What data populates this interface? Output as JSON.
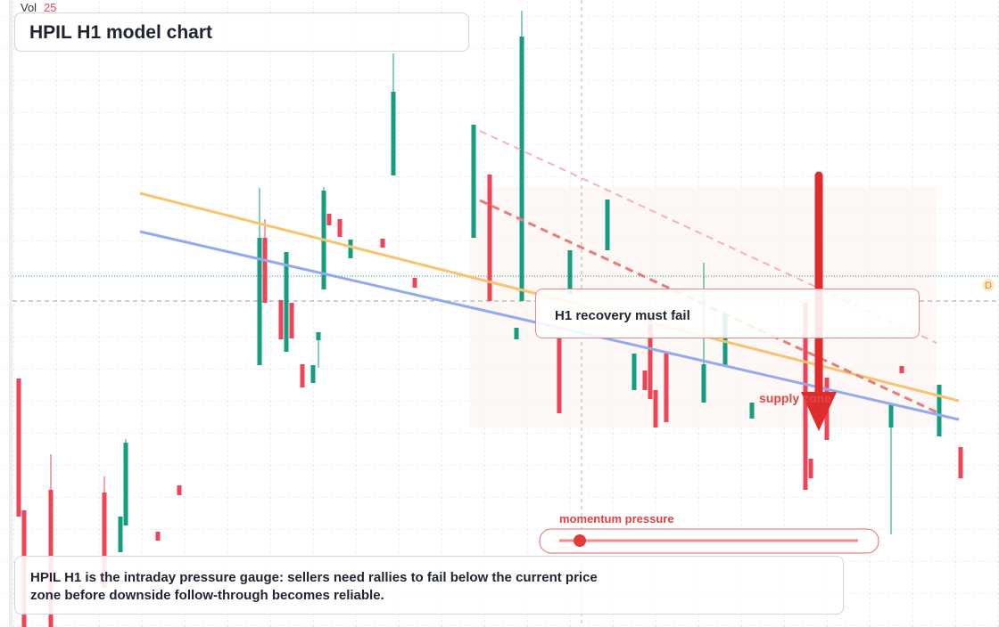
{
  "chart_data": {
    "type": "candlestick",
    "title": "HPIL H1 model chart",
    "volume_label": "Vol",
    "volume_value": "25",
    "marker": "D",
    "annotations": {
      "recovery": "H1 recovery must fail",
      "supply": "supply zone",
      "momentum": "momentum pressure",
      "description": "HPIL H1 is the intraday pressure gauge: sellers need rallies to fail below the current price zone before downside follow-through becomes reliable."
    },
    "up_color": "#169c80",
    "down_color": "#ef4358",
    "grid": true,
    "xlim": [
      -2.5,
      184.17
    ],
    "ylim": [
      0,
      704
    ],
    "x": [
      1,
      2,
      7,
      17,
      20,
      21,
      27,
      31,
      46,
      47,
      50,
      51,
      52,
      54,
      56,
      57,
      58,
      59,
      61,
      63,
      69,
      71,
      75,
      86,
      89,
      94,
      95,
      102,
      104,
      111,
      116,
      118,
      119,
      120,
      122,
      129,
      133,
      138,
      148,
      149,
      152,
      164,
      166,
      173,
      177
    ],
    "open": [
      279,
      131,
      154,
      151,
      84,
      114,
      107,
      159,
      294,
      437,
      367,
      309,
      364,
      295,
      274,
      322,
      379,
      464,
      458,
      414,
      436,
      507,
      392,
      437,
      508,
      323,
      366,
      324,
      374,
      423,
      266,
      288,
      347,
      266,
      309,
      252,
      294,
      234,
      364,
      189,
      280,
      224,
      293,
      214,
      202
    ],
    "close": [
      124,
      0,
      0,
      44,
      124,
      207,
      97,
      148,
      437,
      364,
      323,
      421,
      324,
      269,
      294,
      331,
      490,
      451,
      438,
      435,
      426,
      601,
      381,
      564,
      366,
      336,
      663,
      240,
      423,
      480,
      307,
      266,
      256,
      224,
      230,
      295,
      351,
      252,
      154,
      167,
      210,
      250,
      285,
      272,
      167
    ],
    "high": [
      279,
      131,
      194,
      169,
      124,
      211,
      107,
      159,
      493,
      458,
      367,
      421,
      364,
      295,
      294,
      331,
      494,
      464,
      458,
      435,
      436,
      644,
      392,
      564,
      508,
      336,
      692,
      324,
      423,
      480,
      307,
      288,
      347,
      266,
      309,
      409,
      351,
      252,
      364,
      189,
      280,
      250,
      293,
      272,
      202
    ],
    "low": [
      124,
      0,
      0,
      44,
      84,
      114,
      97,
      148,
      294,
      364,
      323,
      309,
      324,
      269,
      274,
      291,
      379,
      451,
      438,
      414,
      426,
      507,
      381,
      437,
      366,
      323,
      366,
      240,
      374,
      423,
      266,
      266,
      256,
      224,
      230,
      252,
      294,
      234,
      154,
      167,
      210,
      104,
      285,
      214,
      167
    ]
  }
}
